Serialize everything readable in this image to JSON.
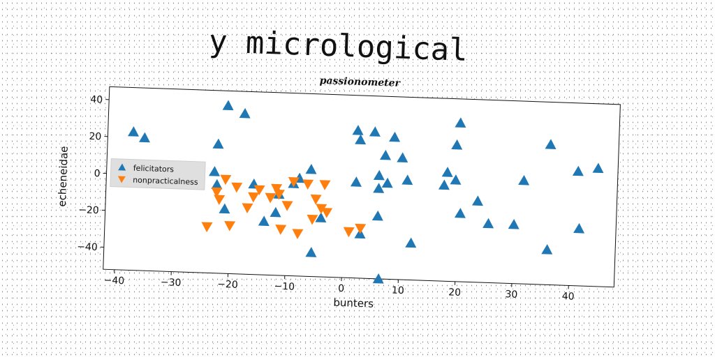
{
  "page_title": "y micrological",
  "chart_data": {
    "type": "scatter",
    "title": "passionometer",
    "xlabel": "bunters",
    "ylabel": "echeneidae",
    "xlim": [
      -42,
      48
    ],
    "ylim": [
      -52,
      47
    ],
    "xticks": [
      -40,
      -30,
      -20,
      -10,
      0,
      10,
      20,
      30,
      40
    ],
    "yticks": [
      40,
      20,
      0,
      -20,
      -40
    ],
    "xtick_labels": [
      "−40",
      "−30",
      "−20",
      "−10",
      "0",
      "10",
      "20",
      "30",
      "40"
    ],
    "ytick_labels": [
      "40",
      "20",
      "0",
      "−20",
      "−40"
    ],
    "grid": false,
    "legend_position": "center-left",
    "series": [
      {
        "name": "felicitators",
        "marker": "triangle-up",
        "color": "#1f77b4",
        "points": [
          [
            -37.5,
            23
          ],
          [
            -35.5,
            20
          ],
          [
            -21,
            39
          ],
          [
            -18,
            35
          ],
          [
            -22.5,
            18
          ],
          [
            -23,
            3
          ],
          [
            -22.5,
            -4
          ],
          [
            -21,
            -17
          ],
          [
            -16,
            -3
          ],
          [
            -14,
            -23
          ],
          [
            -12,
            -18
          ],
          [
            -11.5,
            -8
          ],
          [
            -9,
            -2
          ],
          [
            -8,
            1
          ],
          [
            -6,
            6
          ],
          [
            -5.5,
            -39
          ],
          [
            -4,
            -20
          ],
          [
            2,
            28
          ],
          [
            2.5,
            23
          ],
          [
            5,
            27.5
          ],
          [
            7,
            15
          ],
          [
            8.5,
            25
          ],
          [
            10,
            14
          ],
          [
            6,
            4
          ],
          [
            6,
            -3
          ],
          [
            7.5,
            0
          ],
          [
            6,
            -18
          ],
          [
            2,
            0
          ],
          [
            3,
            -28
          ],
          [
            11,
            2
          ],
          [
            12,
            -32
          ],
          [
            20,
            34
          ],
          [
            19.5,
            22
          ],
          [
            18,
            7
          ],
          [
            19.5,
            3
          ],
          [
            17.5,
            0
          ],
          [
            20.5,
            -15
          ],
          [
            23.5,
            -8
          ],
          [
            25.5,
            -20
          ],
          [
            30,
            -20
          ],
          [
            31.5,
            4
          ],
          [
            36,
            24
          ],
          [
            36,
            -33
          ],
          [
            41,
            10
          ],
          [
            41.5,
            -21
          ],
          [
            44.5,
            12
          ],
          [
            6.5,
            -52
          ]
        ]
      },
      {
        "name": "nonpracticalness",
        "marker": "triangle-down",
        "color": "#ff7f0e",
        "points": [
          [
            -24,
            -27
          ],
          [
            -22.5,
            -8
          ],
          [
            -22,
            -12
          ],
          [
            -21,
            -1
          ],
          [
            -20,
            -26
          ],
          [
            -19,
            -5
          ],
          [
            -17,
            -16
          ],
          [
            -16,
            -10
          ],
          [
            -15,
            -6
          ],
          [
            -13,
            -10
          ],
          [
            -12,
            -5
          ],
          [
            -11.5,
            -8
          ],
          [
            -11,
            -27
          ],
          [
            -10,
            -14
          ],
          [
            -9,
            -1
          ],
          [
            -8,
            -29
          ],
          [
            -6.5,
            -2
          ],
          [
            -5.5,
            -21
          ],
          [
            -5,
            -10
          ],
          [
            -4,
            -15
          ],
          [
            -3.5,
            -2
          ],
          [
            -3,
            -17
          ],
          [
            1,
            -27
          ],
          [
            3,
            -25
          ]
        ]
      }
    ]
  }
}
